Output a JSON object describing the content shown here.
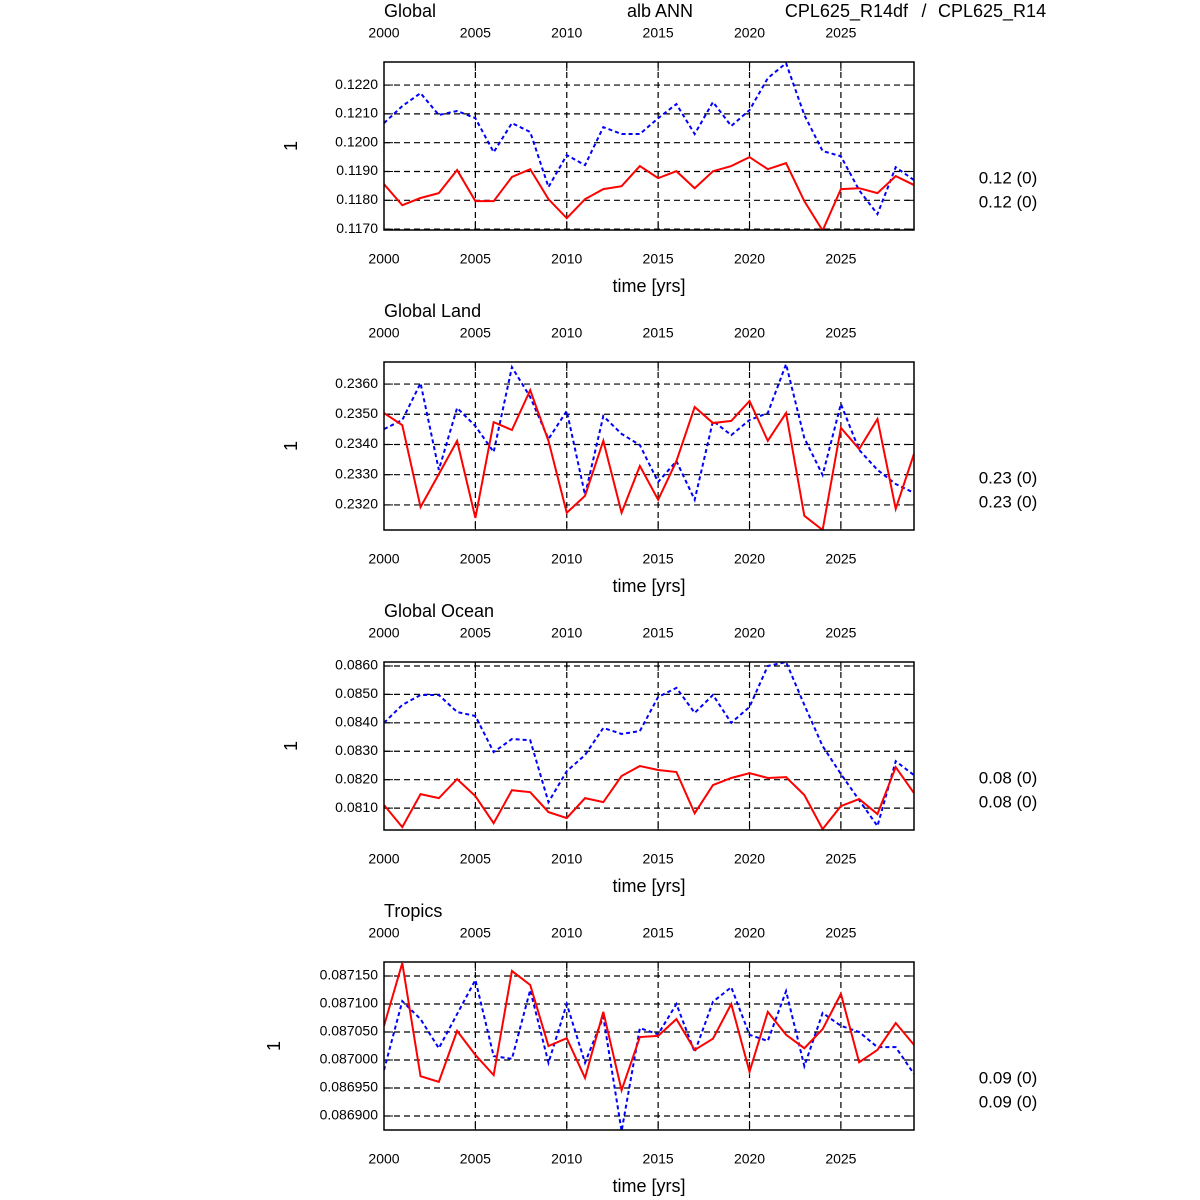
{
  "suptitle": "alb ANN",
  "legend_separator": "/",
  "chart_data": [
    {
      "type": "line",
      "title": "Global",
      "x_label": "time [yrs]",
      "y_label": "1",
      "x": [
        2000,
        2001,
        2002,
        2003,
        2004,
        2005,
        2006,
        2007,
        2008,
        2009,
        2010,
        2011,
        2012,
        2013,
        2014,
        2015,
        2016,
        2017,
        2018,
        2019,
        2020,
        2021,
        2022,
        2023,
        2024,
        2025,
        2026,
        2027,
        2028,
        2029
      ],
      "xlim": [
        2000,
        2029
      ],
      "xticks": [
        2000,
        2005,
        2010,
        2015,
        2020,
        2025
      ],
      "ylim": [
        0.11697,
        0.1228
      ],
      "yticks": [
        {
          "value": 0.117,
          "label": "0.1170"
        },
        {
          "value": 0.118,
          "label": "0.1180"
        },
        {
          "value": 0.119,
          "label": "0.1190"
        },
        {
          "value": 0.12,
          "label": "0.1200"
        },
        {
          "value": 0.121,
          "label": "0.1210"
        },
        {
          "value": 0.122,
          "label": "0.1220"
        }
      ],
      "grid": true,
      "series": [
        {
          "name": "CPL625_R14df",
          "color": "#ff0000",
          "style": "solid",
          "summary_label": "0.12 (0)",
          "values": [
            0.11856,
            0.11783,
            0.11808,
            0.11825,
            0.11905,
            0.11797,
            0.11797,
            0.11881,
            0.11908,
            0.11804,
            0.11738,
            0.11804,
            0.11839,
            0.11849,
            0.11919,
            0.11877,
            0.11901,
            0.11842,
            0.11901,
            0.11919,
            0.1195,
            0.11908,
            0.11929,
            0.11797,
            0.11695,
            0.11839,
            0.11842,
            0.11825,
            0.11884,
            0.11853
          ]
        },
        {
          "name": "CPL625_R14",
          "color": "#0000ff",
          "style": "dashed",
          "summary_label": "0.12 (0)",
          "values": [
            0.12068,
            0.12127,
            0.12172,
            0.12096,
            0.1211,
            0.12085,
            0.11967,
            0.12068,
            0.12037,
            0.11846,
            0.11957,
            0.11922,
            0.12054,
            0.1203,
            0.1203,
            0.12085,
            0.12134,
            0.1203,
            0.12141,
            0.12058,
            0.12113,
            0.12224,
            0.12276,
            0.12096,
            0.11971,
            0.11953,
            0.11835,
            0.11752,
            0.11915,
            0.1187
          ]
        }
      ]
    },
    {
      "type": "line",
      "title": "Global Land",
      "x_label": "time [yrs]",
      "y_label": "1",
      "x": [
        2000,
        2001,
        2002,
        2003,
        2004,
        2005,
        2006,
        2007,
        2008,
        2009,
        2010,
        2011,
        2012,
        2013,
        2014,
        2015,
        2016,
        2017,
        2018,
        2019,
        2020,
        2021,
        2022,
        2023,
        2024,
        2025,
        2026,
        2027,
        2028,
        2029
      ],
      "xlim": [
        2000,
        2029
      ],
      "xticks": [
        2000,
        2005,
        2010,
        2015,
        2020,
        2025
      ],
      "ylim": [
        0.23117,
        0.23673
      ],
      "yticks": [
        {
          "value": 0.232,
          "label": "0.2320"
        },
        {
          "value": 0.233,
          "label": "0.2330"
        },
        {
          "value": 0.234,
          "label": "0.2340"
        },
        {
          "value": 0.235,
          "label": "0.2350"
        },
        {
          "value": 0.236,
          "label": "0.2360"
        }
      ],
      "grid": true,
      "series": [
        {
          "name": "CPL625_R14df",
          "color": "#ff0000",
          "style": "solid",
          "summary_label": "0.23 (0)",
          "values": [
            0.23504,
            0.23464,
            0.23193,
            0.23302,
            0.23412,
            0.23157,
            0.23474,
            0.23448,
            0.2358,
            0.23412,
            0.23174,
            0.2323,
            0.23412,
            0.23174,
            0.23329,
            0.23217,
            0.23345,
            0.23524,
            0.23471,
            0.23478,
            0.23544,
            0.23412,
            0.23504,
            0.23164,
            0.23117,
            0.23455,
            0.23385,
            0.23484,
            0.23187,
            0.23369
          ]
        },
        {
          "name": "CPL625_R14",
          "color": "#0000ff",
          "style": "dashed",
          "summary_label": "0.23 (0)",
          "values": [
            0.23451,
            0.23481,
            0.23603,
            0.23316,
            0.23521,
            0.23461,
            0.23375,
            0.23656,
            0.23557,
            0.23418,
            0.23511,
            0.23233,
            0.23494,
            0.23435,
            0.23398,
            0.23276,
            0.23345,
            0.23217,
            0.23478,
            0.23431,
            0.23481,
            0.23504,
            0.23666,
            0.23421,
            0.23299,
            0.23534,
            0.23382,
            0.23316,
            0.23269,
            0.2324
          ]
        }
      ]
    },
    {
      "type": "line",
      "title": "Global Ocean",
      "x_label": "time [yrs]",
      "y_label": "1",
      "x": [
        2000,
        2001,
        2002,
        2003,
        2004,
        2005,
        2006,
        2007,
        2008,
        2009,
        2010,
        2011,
        2012,
        2013,
        2014,
        2015,
        2016,
        2017,
        2018,
        2019,
        2020,
        2021,
        2022,
        2023,
        2024,
        2025,
        2026,
        2027,
        2028,
        2029
      ],
      "xlim": [
        2000,
        2029
      ],
      "xticks": [
        2000,
        2005,
        2010,
        2015,
        2020,
        2025
      ],
      "ylim": [
        0.08023,
        0.08614
      ],
      "yticks": [
        {
          "value": 0.081,
          "label": "0.0810"
        },
        {
          "value": 0.082,
          "label": "0.0820"
        },
        {
          "value": 0.083,
          "label": "0.0830"
        },
        {
          "value": 0.084,
          "label": "0.0840"
        },
        {
          "value": 0.085,
          "label": "0.0850"
        },
        {
          "value": 0.086,
          "label": "0.0860"
        }
      ],
      "grid": true,
      "series": [
        {
          "name": "CPL625_R14df",
          "color": "#ff0000",
          "style": "solid",
          "summary_label": "0.08 (0)",
          "values": [
            0.08111,
            0.08033,
            0.08149,
            0.08135,
            0.08202,
            0.08142,
            0.08047,
            0.08163,
            0.08156,
            0.08086,
            0.08065,
            0.08135,
            0.08121,
            0.08213,
            0.08248,
            0.08234,
            0.08227,
            0.08082,
            0.08181,
            0.08206,
            0.08223,
            0.08206,
            0.08209,
            0.08146,
            0.08026,
            0.08107,
            0.08132,
            0.08079,
            0.08244,
            0.08153
          ]
        },
        {
          "name": "CPL625_R14",
          "color": "#0000ff",
          "style": "dashed",
          "summary_label": "0.08 (0)",
          "values": [
            0.084,
            0.08463,
            0.08498,
            0.08498,
            0.08438,
            0.08424,
            0.08297,
            0.08343,
            0.08339,
            0.08121,
            0.0823,
            0.08287,
            0.08382,
            0.08361,
            0.08371,
            0.08491,
            0.08523,
            0.08435,
            0.08498,
            0.084,
            0.08456,
            0.086,
            0.08614,
            0.08463,
            0.08318,
            0.0822,
            0.08128,
            0.08037,
            0.08265,
            0.08216
          ]
        }
      ]
    },
    {
      "type": "line",
      "title": "Tropics",
      "x_label": "time [yrs]",
      "y_label": "1",
      "x": [
        2000,
        2001,
        2002,
        2003,
        2004,
        2005,
        2006,
        2007,
        2008,
        2009,
        2010,
        2011,
        2012,
        2013,
        2014,
        2015,
        2016,
        2017,
        2018,
        2019,
        2020,
        2021,
        2022,
        2023,
        2024,
        2025,
        2026,
        2027,
        2028,
        2029
      ],
      "xlim": [
        2000,
        2029
      ],
      "xticks": [
        2000,
        2005,
        2010,
        2015,
        2020,
        2025
      ],
      "ylim": [
        0.086875,
        0.087175
      ],
      "yticks": [
        {
          "value": 0.0869,
          "label": "0.086900"
        },
        {
          "value": 0.08695,
          "label": "0.086950"
        },
        {
          "value": 0.087,
          "label": "0.087000"
        },
        {
          "value": 0.08705,
          "label": "0.087050"
        },
        {
          "value": 0.0871,
          "label": "0.087100"
        },
        {
          "value": 0.08715,
          "label": "0.087150"
        }
      ],
      "grid": true,
      "series": [
        {
          "name": "CPL625_R14df",
          "color": "#ff0000",
          "style": "solid",
          "summary_label": "0.09 (0)",
          "values": [
            0.087061,
            0.087173,
            0.086971,
            0.086961,
            0.087052,
            0.087009,
            0.086973,
            0.087159,
            0.087134,
            0.087025,
            0.087039,
            0.086968,
            0.087086,
            0.086946,
            0.087041,
            0.087043,
            0.087073,
            0.087018,
            0.087038,
            0.0871,
            0.086979,
            0.087086,
            0.087045,
            0.087021,
            0.087055,
            0.087118,
            0.086996,
            0.087018,
            0.087066,
            0.087027
          ]
        },
        {
          "name": "CPL625_R14",
          "color": "#0000ff",
          "style": "dashed",
          "summary_label": "0.09 (0)",
          "values": [
            0.086982,
            0.087105,
            0.087073,
            0.087021,
            0.087082,
            0.087143,
            0.087007,
            0.087002,
            0.087125,
            0.086995,
            0.0871,
            0.086995,
            0.087077,
            0.086873,
            0.087057,
            0.087046,
            0.0871,
            0.087014,
            0.087104,
            0.08713,
            0.087045,
            0.087034,
            0.087123,
            0.086989,
            0.087084,
            0.087061,
            0.08705,
            0.087023,
            0.087023,
            0.086975
          ]
        }
      ]
    }
  ]
}
